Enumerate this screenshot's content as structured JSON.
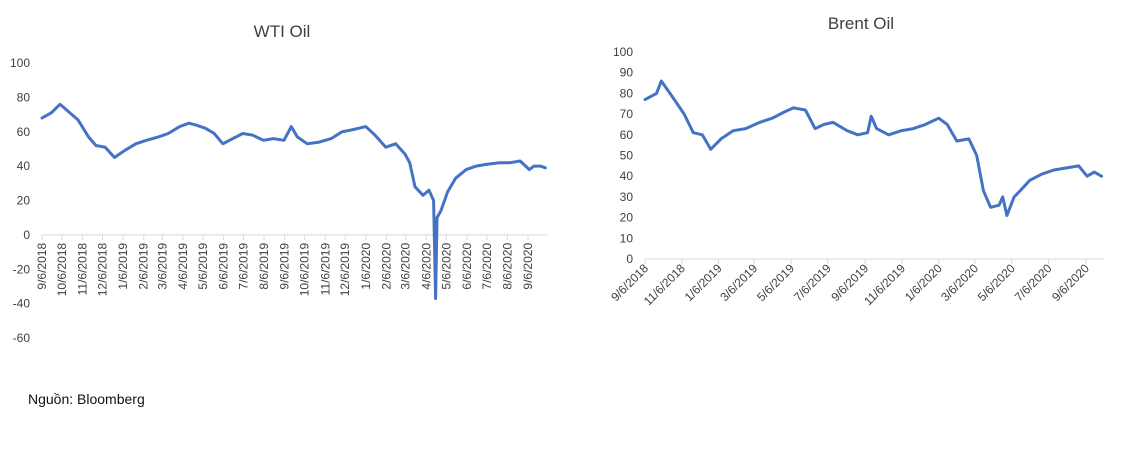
{
  "source": "Nguồn: Bloomberg",
  "chart_data": [
    {
      "type": "line",
      "title": "WTI Oil",
      "xlabel": "",
      "ylabel": "",
      "ylim": [
        -60,
        100
      ],
      "yticks": [
        100,
        80,
        60,
        40,
        20,
        0,
        -20,
        -40,
        -60
      ],
      "x_tick_labels": [
        "9/6/2018",
        "10/6/2018",
        "11/6/2018",
        "12/6/2018",
        "1/6/2019",
        "2/6/2019",
        "3/6/2019",
        "4/6/2019",
        "5/6/2019",
        "6/6/2019",
        "7/6/2019",
        "8/6/2019",
        "9/6/2019",
        "10/6/2019",
        "11/6/2019",
        "12/6/2019",
        "1/6/2020",
        "2/6/2020",
        "3/6/2020",
        "4/6/2020",
        "5/6/2020",
        "6/6/2020",
        "7/6/2020",
        "8/6/2020",
        "9/6/2020"
      ],
      "grid": false,
      "color": "#4472c4",
      "series": [
        {
          "x": [
            "2018-09-06",
            "2018-09-20",
            "2018-10-03",
            "2018-10-15",
            "2018-10-30",
            "2018-11-15",
            "2018-11-26",
            "2018-12-10",
            "2018-12-24",
            "2019-01-08",
            "2019-01-25",
            "2019-02-10",
            "2019-02-28",
            "2019-03-15",
            "2019-04-01",
            "2019-04-15",
            "2019-04-25",
            "2019-05-10",
            "2019-05-23",
            "2019-06-05",
            "2019-06-20",
            "2019-07-05",
            "2019-07-20",
            "2019-08-05",
            "2019-08-20",
            "2019-09-05",
            "2019-09-16",
            "2019-09-25",
            "2019-10-10",
            "2019-10-28",
            "2019-11-15",
            "2019-12-01",
            "2019-12-15",
            "2020-01-06",
            "2020-01-20",
            "2020-02-05",
            "2020-02-20",
            "2020-03-05",
            "2020-03-12",
            "2020-03-20",
            "2020-04-01",
            "2020-04-10",
            "2020-04-17",
            "2020-04-20",
            "2020-04-22",
            "2020-04-28",
            "2020-05-08",
            "2020-05-20",
            "2020-06-05",
            "2020-06-20",
            "2020-07-05",
            "2020-07-25",
            "2020-08-10",
            "2020-08-25",
            "2020-09-08",
            "2020-09-15",
            "2020-09-25",
            "2020-10-02"
          ],
          "values": [
            68,
            71,
            76,
            72,
            67,
            57,
            52,
            51,
            45,
            49,
            53,
            55,
            57,
            59,
            63,
            65,
            64,
            62,
            59,
            53,
            56,
            59,
            58,
            55,
            56,
            55,
            63,
            57,
            53,
            54,
            56,
            60,
            61,
            63,
            58,
            51,
            53,
            47,
            42,
            28,
            23,
            26,
            20,
            -37,
            10,
            14,
            25,
            33,
            38,
            40,
            41,
            42,
            42,
            43,
            38,
            40,
            40,
            39
          ]
        }
      ]
    },
    {
      "type": "line",
      "title": "Brent Oil",
      "xlabel": "",
      "ylabel": "",
      "ylim": [
        0,
        100
      ],
      "yticks": [
        100,
        90,
        80,
        70,
        60,
        50,
        40,
        30,
        20,
        10,
        0
      ],
      "x_tick_labels": [
        "9/6/2018",
        "11/6/2018",
        "1/6/2019",
        "3/6/2019",
        "5/6/2019",
        "7/6/2019",
        "9/6/2019",
        "11/6/2019",
        "1/6/2020",
        "3/6/2020",
        "5/6/2020",
        "7/6/2020",
        "9/6/2020"
      ],
      "grid": false,
      "color": "#4472c4",
      "series": [
        {
          "x": [
            "2018-09-06",
            "2018-09-25",
            "2018-10-03",
            "2018-10-20",
            "2018-11-10",
            "2018-11-25",
            "2018-12-10",
            "2018-12-24",
            "2019-01-10",
            "2019-01-30",
            "2019-02-20",
            "2019-03-15",
            "2019-04-05",
            "2019-04-25",
            "2019-05-10",
            "2019-05-30",
            "2019-06-15",
            "2019-06-30",
            "2019-07-15",
            "2019-08-07",
            "2019-08-25",
            "2019-09-10",
            "2019-09-16",
            "2019-09-25",
            "2019-10-15",
            "2019-11-05",
            "2019-11-25",
            "2019-12-15",
            "2020-01-06",
            "2020-01-20",
            "2020-02-05",
            "2020-02-25",
            "2020-03-09",
            "2020-03-20",
            "2020-04-01",
            "2020-04-15",
            "2020-04-21",
            "2020-04-28",
            "2020-05-10",
            "2020-05-20",
            "2020-06-05",
            "2020-06-25",
            "2020-07-15",
            "2020-08-05",
            "2020-08-25",
            "2020-09-08",
            "2020-09-20",
            "2020-10-02"
          ],
          "values": [
            77,
            80,
            86,
            79,
            70,
            61,
            60,
            53,
            58,
            62,
            63,
            66,
            68,
            71,
            73,
            72,
            63,
            65,
            66,
            62,
            60,
            61,
            69,
            63,
            60,
            62,
            63,
            65,
            68,
            65,
            57,
            58,
            50,
            33,
            25,
            26,
            30,
            21,
            30,
            33,
            38,
            41,
            43,
            44,
            45,
            40,
            42,
            40
          ]
        }
      ]
    }
  ]
}
